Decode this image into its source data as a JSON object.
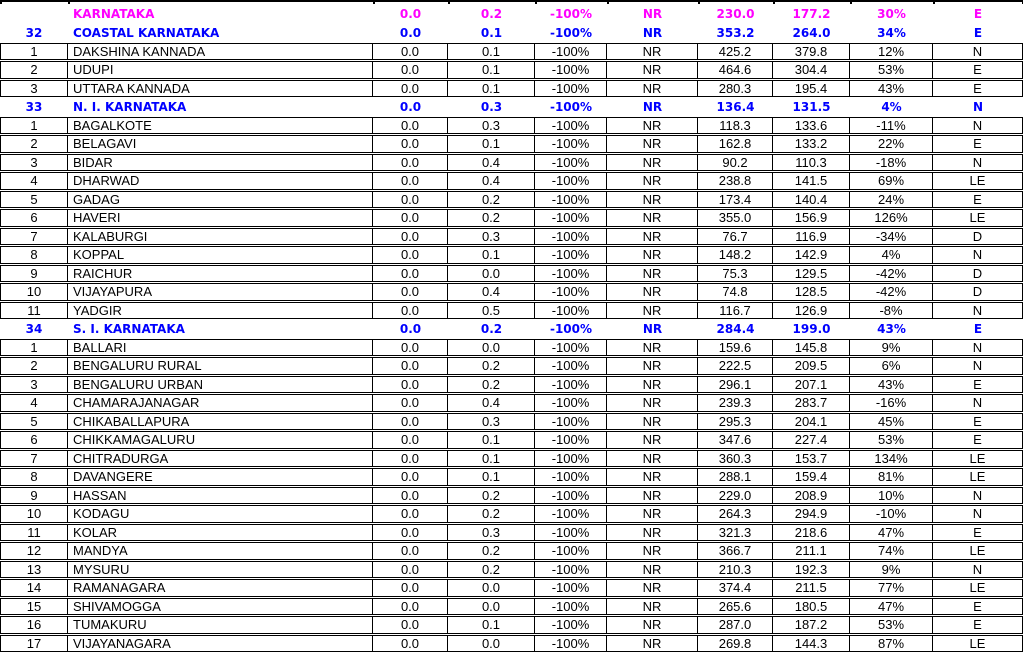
{
  "colors": {
    "state": "#FF00FF",
    "region": "#0000FF",
    "district": "#000000",
    "grid": "#000000"
  },
  "table": {
    "column_keys": [
      "sr",
      "name",
      "rain_a",
      "rain_b",
      "departure_a",
      "nr_flag",
      "actual",
      "normal",
      "departure_b",
      "category"
    ],
    "rows": [
      {
        "style": "state",
        "sr": "",
        "name": "KARNATAKA",
        "values": [
          "0.0",
          "0.2",
          "-100%",
          "NR",
          "230.0",
          "177.2",
          "30%",
          "E"
        ]
      },
      {
        "style": "region",
        "sr": "32",
        "name": "COASTAL KARNATAKA",
        "values": [
          "0.0",
          "0.1",
          "-100%",
          "NR",
          "353.2",
          "264.0",
          "34%",
          "E"
        ]
      },
      {
        "style": "district",
        "sr": "1",
        "name": "DAKSHINA KANNADA",
        "values": [
          "0.0",
          "0.1",
          "-100%",
          "NR",
          "425.2",
          "379.8",
          "12%",
          "N"
        ]
      },
      {
        "style": "district",
        "sr": "2",
        "name": "UDUPI",
        "values": [
          "0.0",
          "0.1",
          "-100%",
          "NR",
          "464.6",
          "304.4",
          "53%",
          "E"
        ]
      },
      {
        "style": "district",
        "sr": "3",
        "name": "UTTARA KANNADA",
        "values": [
          "0.0",
          "0.1",
          "-100%",
          "NR",
          "280.3",
          "195.4",
          "43%",
          "E"
        ]
      },
      {
        "style": "region",
        "sr": "33",
        "name": "N. I. KARNATAKA",
        "values": [
          "0.0",
          "0.3",
          "-100%",
          "NR",
          "136.4",
          "131.5",
          "4%",
          "N"
        ]
      },
      {
        "style": "district",
        "sr": "1",
        "name": "BAGALKOTE",
        "values": [
          "0.0",
          "0.3",
          "-100%",
          "NR",
          "118.3",
          "133.6",
          "-11%",
          "N"
        ]
      },
      {
        "style": "district",
        "sr": "2",
        "name": "BELAGAVI",
        "values": [
          "0.0",
          "0.1",
          "-100%",
          "NR",
          "162.8",
          "133.2",
          "22%",
          "E"
        ]
      },
      {
        "style": "district",
        "sr": "3",
        "name": "BIDAR",
        "values": [
          "0.0",
          "0.4",
          "-100%",
          "NR",
          "90.2",
          "110.3",
          "-18%",
          "N"
        ]
      },
      {
        "style": "district",
        "sr": "4",
        "name": "DHARWAD",
        "values": [
          "0.0",
          "0.4",
          "-100%",
          "NR",
          "238.8",
          "141.5",
          "69%",
          "LE"
        ]
      },
      {
        "style": "district",
        "sr": "5",
        "name": "GADAG",
        "values": [
          "0.0",
          "0.2",
          "-100%",
          "NR",
          "173.4",
          "140.4",
          "24%",
          "E"
        ]
      },
      {
        "style": "district",
        "sr": "6",
        "name": "HAVERI",
        "values": [
          "0.0",
          "0.2",
          "-100%",
          "NR",
          "355.0",
          "156.9",
          "126%",
          "LE"
        ]
      },
      {
        "style": "district",
        "sr": "7",
        "name": "KALABURGI",
        "values": [
          "0.0",
          "0.3",
          "-100%",
          "NR",
          "76.7",
          "116.9",
          "-34%",
          "D"
        ]
      },
      {
        "style": "district",
        "sr": "8",
        "name": "KOPPAL",
        "values": [
          "0.0",
          "0.1",
          "-100%",
          "NR",
          "148.2",
          "142.9",
          "4%",
          "N"
        ]
      },
      {
        "style": "district",
        "sr": "9",
        "name": "RAICHUR",
        "values": [
          "0.0",
          "0.0",
          "-100%",
          "NR",
          "75.3",
          "129.5",
          "-42%",
          "D"
        ]
      },
      {
        "style": "district",
        "sr": "10",
        "name": "VIJAYAPURA",
        "values": [
          "0.0",
          "0.4",
          "-100%",
          "NR",
          "74.8",
          "128.5",
          "-42%",
          "D"
        ]
      },
      {
        "style": "district",
        "sr": "11",
        "name": "YADGIR",
        "values": [
          "0.0",
          "0.5",
          "-100%",
          "NR",
          "116.7",
          "126.9",
          "-8%",
          "N"
        ]
      },
      {
        "style": "region",
        "sr": "34",
        "name": "S. I. KARNATAKA",
        "values": [
          "0.0",
          "0.2",
          "-100%",
          "NR",
          "284.4",
          "199.0",
          "43%",
          "E"
        ]
      },
      {
        "style": "district",
        "sr": "1",
        "name": "BALLARI",
        "values": [
          "0.0",
          "0.0",
          "-100%",
          "NR",
          "159.6",
          "145.8",
          "9%",
          "N"
        ]
      },
      {
        "style": "district",
        "sr": "2",
        "name": "BENGALURU RURAL",
        "values": [
          "0.0",
          "0.2",
          "-100%",
          "NR",
          "222.5",
          "209.5",
          "6%",
          "N"
        ]
      },
      {
        "style": "district",
        "sr": "3",
        "name": "BENGALURU URBAN",
        "values": [
          "0.0",
          "0.2",
          "-100%",
          "NR",
          "296.1",
          "207.1",
          "43%",
          "E"
        ]
      },
      {
        "style": "district",
        "sr": "4",
        "name": "CHAMARAJANAGAR",
        "values": [
          "0.0",
          "0.4",
          "-100%",
          "NR",
          "239.3",
          "283.7",
          "-16%",
          "N"
        ]
      },
      {
        "style": "district",
        "sr": "5",
        "name": "CHIKABALLAPURA",
        "values": [
          "0.0",
          "0.3",
          "-100%",
          "NR",
          "295.3",
          "204.1",
          "45%",
          "E"
        ]
      },
      {
        "style": "district",
        "sr": "6",
        "name": "CHIKKAMAGALURU",
        "values": [
          "0.0",
          "0.1",
          "-100%",
          "NR",
          "347.6",
          "227.4",
          "53%",
          "E"
        ]
      },
      {
        "style": "district",
        "sr": "7",
        "name": "CHITRADURGA",
        "values": [
          "0.0",
          "0.1",
          "-100%",
          "NR",
          "360.3",
          "153.7",
          "134%",
          "LE"
        ]
      },
      {
        "style": "district",
        "sr": "8",
        "name": "DAVANGERE",
        "values": [
          "0.0",
          "0.1",
          "-100%",
          "NR",
          "288.1",
          "159.4",
          "81%",
          "LE"
        ]
      },
      {
        "style": "district",
        "sr": "9",
        "name": "HASSAN",
        "values": [
          "0.0",
          "0.2",
          "-100%",
          "NR",
          "229.0",
          "208.9",
          "10%",
          "N"
        ]
      },
      {
        "style": "district",
        "sr": "10",
        "name": "KODAGU",
        "values": [
          "0.0",
          "0.2",
          "-100%",
          "NR",
          "264.3",
          "294.9",
          "-10%",
          "N"
        ]
      },
      {
        "style": "district",
        "sr": "11",
        "name": "KOLAR",
        "values": [
          "0.0",
          "0.3",
          "-100%",
          "NR",
          "321.3",
          "218.6",
          "47%",
          "E"
        ]
      },
      {
        "style": "district",
        "sr": "12",
        "name": "MANDYA",
        "values": [
          "0.0",
          "0.2",
          "-100%",
          "NR",
          "366.7",
          "211.1",
          "74%",
          "LE"
        ]
      },
      {
        "style": "district",
        "sr": "13",
        "name": "MYSURU",
        "values": [
          "0.0",
          "0.2",
          "-100%",
          "NR",
          "210.3",
          "192.3",
          "9%",
          "N"
        ]
      },
      {
        "style": "district",
        "sr": "14",
        "name": "RAMANAGARA",
        "values": [
          "0.0",
          "0.0",
          "-100%",
          "NR",
          "374.4",
          "211.5",
          "77%",
          "LE"
        ]
      },
      {
        "style": "district",
        "sr": "15",
        "name": "SHIVAMOGGA",
        "values": [
          "0.0",
          "0.0",
          "-100%",
          "NR",
          "265.6",
          "180.5",
          "47%",
          "E"
        ]
      },
      {
        "style": "district",
        "sr": "16",
        "name": "TUMAKURU",
        "values": [
          "0.0",
          "0.1",
          "-100%",
          "NR",
          "287.0",
          "187.2",
          "53%",
          "E"
        ]
      },
      {
        "style": "district",
        "sr": "17",
        "name": "VIJAYANAGARA",
        "values": [
          "0.0",
          "0.0",
          "-100%",
          "NR",
          "269.8",
          "144.3",
          "87%",
          "LE"
        ]
      }
    ]
  }
}
